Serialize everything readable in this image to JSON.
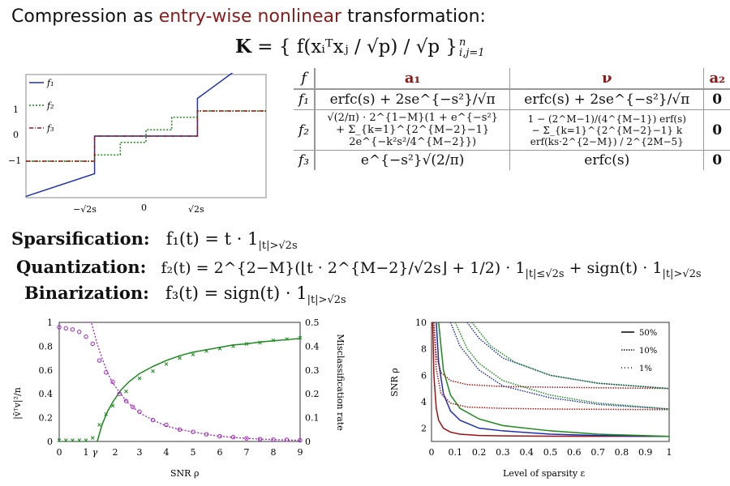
{
  "title": {
    "prefix": "Compression as ",
    "accent": "entry-wise nonlinear",
    "suffix": " transformation:"
  },
  "kernel_eq": {
    "lhs": "K",
    "body": " = { f(xᵢᵀxⱼ / √p) / √p }",
    "sup": "n",
    "sub": "i,j=1"
  },
  "table": {
    "headers": [
      "f",
      "a₁",
      "ν",
      "a₂"
    ],
    "rows": [
      {
        "f": "f₁",
        "a1": "erfc(s) + 2se^{−s²}/√π",
        "nu": "erfc(s) + 2se^{−s²}/√π",
        "a2": "0"
      },
      {
        "f": "f₂",
        "a1_line1": "√(2/π) · 2^{1−M}(1 + e^{−s²}",
        "a1_line2": "+ Σ_{k=1}^{2^{M−2}−1} 2e^{−k²s²/4^{M−2}})",
        "nu_line1": "1 − (2^M−1)/(4^{M−1}) erf(s)",
        "nu_line2": "− Σ_{k=1}^{2^{M−2}−1} k erf(ks·2^{2−M}) / 2^{2M−5}",
        "a2": "0"
      },
      {
        "f": "f₃",
        "a1": "e^{−s²}√(2/π)",
        "nu": "erfc(s)",
        "a2": "0"
      }
    ]
  },
  "equations": [
    {
      "label": "Sparsification:",
      "expr": "f₁(t) = t · 1",
      "sub": "|t|>√2s",
      "tail": ""
    },
    {
      "label": "Quantization:",
      "expr": "f₂(t) = 2^{2−M}(⌊t · 2^{M−2}/√2s⌋ + 1/2) · 1",
      "sub": "|t|≤√2s",
      "tail": " + sign(t) · 1",
      "sub2": "|t|>√2s"
    },
    {
      "label": "Binarization:",
      "expr": "f₃(t) = sign(t) · 1",
      "sub": "|t|>√2s",
      "tail": ""
    }
  ],
  "colors": {
    "blue": "#1f2fb0",
    "green": "#1a8a1a",
    "red": "#a01010",
    "purple": "#a020c0",
    "accent": "#8b1a1a"
  },
  "chart_data": [
    {
      "type": "line",
      "title": "",
      "legend": [
        "f₁",
        "f₂",
        "f₃"
      ],
      "legend_position": "top-left",
      "x_ticks": [
        "−√2s",
        "0",
        "√2s"
      ],
      "y_ticks": [
        "1",
        "0",
        "−1"
      ],
      "series": [
        {
          "name": "f₁",
          "style": "solid",
          "color": "#1f2fb0",
          "desc": "t·1(|t|>√2s)"
        },
        {
          "name": "f₂",
          "style": "dotted",
          "color": "#1a8a1a",
          "desc": "quantized staircase"
        },
        {
          "name": "f₃",
          "style": "dash-dot",
          "color": "#a01010",
          "desc": "sign(t)·1(|t|>√2s)"
        }
      ]
    },
    {
      "type": "scatter",
      "xlabel": "SNR ρ",
      "ylabel_left": "|v̂ᵀv|²/n",
      "ylabel_right": "Misclassification rate",
      "xlim": [
        0,
        9
      ],
      "ylim_left": [
        0,
        1
      ],
      "ylim_right": [
        0,
        0.5
      ],
      "x_ticks": [
        "0",
        "1",
        "γ",
        "2",
        "3",
        "4",
        "5",
        "6",
        "7",
        "8",
        "9"
      ],
      "y_ticks_left": [
        "0",
        "0.2",
        "0.4",
        "0.6",
        "0.8",
        "1"
      ],
      "y_ticks_right": [
        "0",
        "0.1",
        "0.2",
        "0.3",
        "0.4",
        "0.5"
      ],
      "gamma": 1.42,
      "series": [
        {
          "name": "alignment theory",
          "color": "#1a8a1a",
          "x": [
            1.42,
            1.6,
            1.8,
            2.0,
            2.3,
            2.6,
            3.0,
            3.5,
            4,
            4.5,
            5,
            5.5,
            6,
            6.5,
            7,
            7.5,
            8,
            8.5,
            9
          ],
          "y": [
            0,
            0.14,
            0.25,
            0.33,
            0.43,
            0.5,
            0.57,
            0.63,
            0.68,
            0.72,
            0.75,
            0.77,
            0.79,
            0.81,
            0.82,
            0.835,
            0.845,
            0.855,
            0.865
          ]
        },
        {
          "name": "alignment empirical",
          "color": "#1a8a1a",
          "x": [
            0,
            0.25,
            0.5,
            0.75,
            1.0,
            1.25,
            1.5,
            1.75,
            2.0,
            2.5,
            3,
            3.5,
            4,
            4.5,
            5,
            5.5,
            6,
            6.5,
            7,
            7.5,
            8,
            8.5,
            9
          ],
          "y": [
            0.01,
            0.01,
            0.01,
            0.01,
            0.01,
            0.03,
            0.14,
            0.23,
            0.3,
            0.42,
            0.53,
            0.59,
            0.65,
            0.7,
            0.73,
            0.76,
            0.78,
            0.8,
            0.82,
            0.83,
            0.85,
            0.86,
            0.87
          ]
        },
        {
          "name": "misclassification theory",
          "color": "#a020c0",
          "x": [
            1.0,
            1.2,
            1.42,
            1.6,
            1.8,
            2,
            2.5,
            3,
            3.5,
            4,
            4.5,
            5,
            5.5,
            6,
            6.5,
            7,
            7.5,
            8,
            8.5,
            9
          ],
          "y": [
            0.5,
            0.5,
            0.41,
            0.35,
            0.29,
            0.245,
            0.17,
            0.12,
            0.09,
            0.065,
            0.05,
            0.04,
            0.03,
            0.022,
            0.017,
            0.013,
            0.01,
            0.008,
            0.006,
            0.005
          ]
        },
        {
          "name": "misclassification empirical",
          "color": "#a020c0",
          "x": [
            0,
            0.25,
            0.5,
            0.75,
            1.0,
            1.25,
            1.5,
            1.75,
            2,
            2.25,
            2.5,
            2.75,
            3,
            3.5,
            4,
            4.5,
            5,
            5.5,
            6,
            6.5,
            7,
            7.5,
            8,
            8.5,
            9
          ],
          "y": [
            0.48,
            0.475,
            0.47,
            0.46,
            0.44,
            0.41,
            0.34,
            0.29,
            0.25,
            0.2,
            0.17,
            0.145,
            0.125,
            0.09,
            0.07,
            0.05,
            0.04,
            0.03,
            0.022,
            0.018,
            0.013,
            0.01,
            0.008,
            0.007,
            0.005
          ]
        }
      ]
    },
    {
      "type": "line",
      "xlabel": "Level of sparsity ε",
      "ylabel": "SNR ρ",
      "xlim": [
        0,
        1
      ],
      "ylim": [
        1,
        10
      ],
      "x_ticks": [
        "0",
        "0.1",
        "0.2",
        "0.3",
        "0.4",
        "0.5",
        "0.6",
        "0.7",
        "0.8",
        "0.9",
        "1"
      ],
      "y_ticks": [
        "2",
        "4",
        "6",
        "8",
        "10"
      ],
      "legend": [
        "50%",
        "10%",
        "1%"
      ],
      "legend_position": "top-right",
      "series": [
        {
          "color": "#a01010",
          "style": "solid",
          "x": [
            0.005,
            0.01,
            0.02,
            0.03,
            0.05,
            0.08,
            0.12,
            0.2,
            0.3,
            0.5,
            0.7,
            1.0
          ],
          "y": [
            10,
            6,
            3.5,
            2.6,
            2.0,
            1.7,
            1.55,
            1.45,
            1.42,
            1.4,
            1.39,
            1.38
          ]
        },
        {
          "color": "#1f2fb0",
          "style": "solid",
          "x": [
            0.02,
            0.03,
            0.05,
            0.08,
            0.12,
            0.2,
            0.3,
            0.5,
            0.7,
            1.0
          ],
          "y": [
            10,
            7,
            4.6,
            3.3,
            2.6,
            2.0,
            1.8,
            1.55,
            1.45,
            1.38
          ]
        },
        {
          "color": "#1a8a1a",
          "style": "solid",
          "x": [
            0.03,
            0.05,
            0.08,
            0.12,
            0.2,
            0.3,
            0.5,
            0.7,
            1.0
          ],
          "y": [
            10,
            6.4,
            4.5,
            3.5,
            2.7,
            2.2,
            1.8,
            1.55,
            1.38
          ]
        },
        {
          "color": "#a01010",
          "style": "dotted",
          "x": [
            0.01,
            0.02,
            0.04,
            0.08,
            0.15,
            0.3,
            0.5,
            1.0
          ],
          "y": [
            10,
            6.5,
            4.6,
            3.9,
            3.6,
            3.5,
            3.45,
            3.4
          ]
        },
        {
          "color": "#a01010",
          "style": "dotted",
          "x": [
            0.01,
            0.02,
            0.04,
            0.08,
            0.15,
            0.3,
            0.5,
            1.0
          ],
          "y": [
            10,
            7.5,
            6.2,
            5.6,
            5.3,
            5.15,
            5.1,
            5.0
          ]
        },
        {
          "color": "#1f2fb0",
          "style": "dotted",
          "x": [
            0.08,
            0.12,
            0.2,
            0.3,
            0.5,
            0.7,
            1.0
          ],
          "y": [
            10,
            8.2,
            6.4,
            5.2,
            4.3,
            3.8,
            3.45
          ]
        },
        {
          "color": "#1f2fb0",
          "style": "dotted",
          "x": [
            0.15,
            0.2,
            0.3,
            0.5,
            0.7,
            1.0
          ],
          "y": [
            10,
            8.8,
            7.3,
            6.0,
            5.4,
            5.0
          ]
        },
        {
          "color": "#1a8a1a",
          "style": "dotted",
          "x": [
            0.1,
            0.15,
            0.2,
            0.3,
            0.5,
            0.7,
            1.0
          ],
          "y": [
            10,
            8.0,
            6.9,
            5.6,
            4.5,
            3.9,
            3.45
          ]
        },
        {
          "color": "#1a8a1a",
          "style": "dotted",
          "x": [
            0.17,
            0.25,
            0.35,
            0.5,
            0.7,
            1.0
          ],
          "y": [
            10,
            8.2,
            7.0,
            6.0,
            5.4,
            5.0
          ]
        }
      ]
    }
  ]
}
